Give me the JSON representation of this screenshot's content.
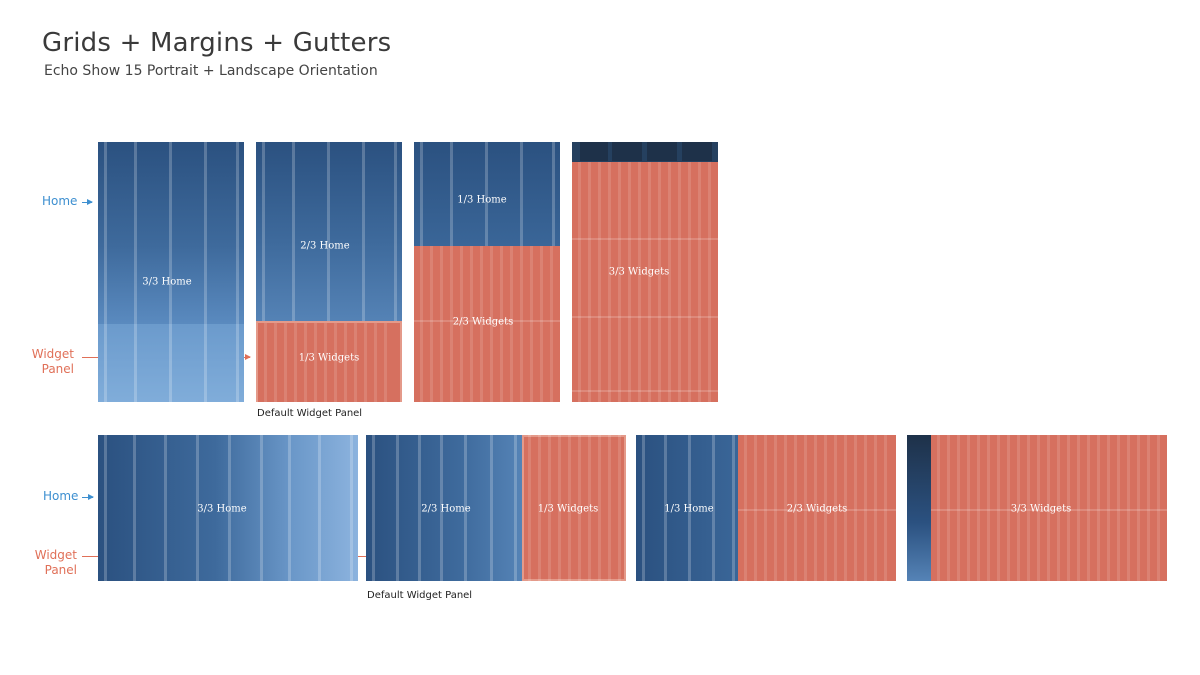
{
  "header": {
    "title": "Grids + Margins + Gutters",
    "subtitle": "Echo Show 15 Portrait + Landscape Orientation"
  },
  "portrait": {
    "home_label": "Home",
    "widget_label_line1": "Widget",
    "widget_label_line2": "Panel",
    "caption": "Default Widget Panel",
    "screens": [
      {
        "home": "3/3 Home"
      },
      {
        "home": "2/3 Home",
        "widgets": "1/3 Widgets"
      },
      {
        "home": "1/3 Home",
        "widgets": "2/3 Widgets"
      },
      {
        "widgets": "3/3 Widgets"
      }
    ]
  },
  "landscape": {
    "home_label": "Home",
    "widget_label_line1": "Widget",
    "widget_label_line2": "Panel",
    "caption": "Default Widget Panel",
    "screens": [
      {
        "home": "3/3 Home"
      },
      {
        "home": "2/3 Home",
        "widgets": "1/3 Widgets"
      },
      {
        "home": "1/3 Home",
        "widgets": "2/3 Widgets"
      },
      {
        "widgets": "3/3 Widgets"
      }
    ]
  },
  "colors": {
    "home_blue": "#3d6f9f",
    "widget_red": "#d6705f",
    "label_blue": "#3d8fd0",
    "label_red": "#e07058"
  }
}
